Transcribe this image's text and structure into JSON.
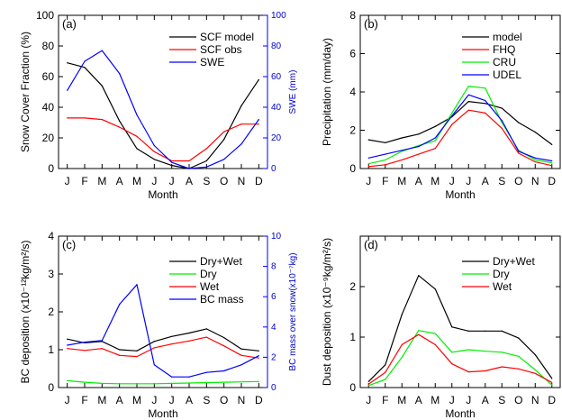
{
  "chart_data": [
    {
      "type": "line",
      "panel_label": "(a)",
      "xlabel": "Month",
      "ylabel": "Snow Cover Fraction (%)",
      "ylabel_right": "SWE (mm)",
      "categories": [
        "J",
        "F",
        "M",
        "A",
        "M",
        "J",
        "J",
        "A",
        "S",
        "O",
        "N",
        "D"
      ],
      "ylim": [
        0,
        100
      ],
      "y_ticks": [
        "0",
        "20",
        "40",
        "60",
        "80",
        "100"
      ],
      "ylim_right": [
        0,
        100
      ],
      "y_ticks_right": [
        "0",
        "20",
        "40",
        "60",
        "80",
        "100"
      ],
      "legend_position": "top-right",
      "series": [
        {
          "name": "SCF model",
          "color": "#000000",
          "axis": "left",
          "values": [
            69,
            66,
            54,
            31,
            13,
            6,
            2,
            0,
            5,
            19,
            41,
            58
          ]
        },
        {
          "name": "SCF obs",
          "color": "#ff0000",
          "axis": "left",
          "values": [
            33,
            33,
            32,
            27,
            21,
            11,
            5,
            5,
            13,
            24,
            29,
            29
          ]
        },
        {
          "name": "SWE",
          "color": "#0000ff",
          "axis": "right",
          "values": [
            51,
            70,
            77,
            62,
            35,
            15,
            4,
            0,
            1,
            6,
            16,
            32
          ]
        }
      ]
    },
    {
      "type": "line",
      "panel_label": "(b)",
      "xlabel": "Month",
      "ylabel": "Precipitation (mm/day)",
      "categories": [
        "J",
        "F",
        "M",
        "A",
        "M",
        "J",
        "J",
        "A",
        "S",
        "O",
        "N",
        "D"
      ],
      "ylim": [
        0,
        8
      ],
      "y_ticks": [
        "0",
        "2",
        "4",
        "6",
        "8"
      ],
      "legend_position": "top-right",
      "series": [
        {
          "name": "model",
          "color": "#000000",
          "values": [
            1.5,
            1.35,
            1.6,
            1.8,
            2.2,
            2.7,
            3.5,
            3.4,
            3.15,
            2.4,
            1.9,
            1.25
          ]
        },
        {
          "name": "FHQ",
          "color": "#ff0000",
          "values": [
            0.1,
            0.2,
            0.45,
            0.75,
            1.05,
            2.3,
            3.05,
            2.9,
            2.1,
            0.8,
            0.35,
            0.15
          ]
        },
        {
          "name": "CRU",
          "color": "#00ee00",
          "values": [
            0.25,
            0.45,
            0.9,
            1.2,
            1.45,
            2.9,
            4.3,
            4.2,
            2.4,
            0.95,
            0.45,
            0.3
          ]
        },
        {
          "name": "UDEL",
          "color": "#0000ff",
          "values": [
            0.55,
            0.75,
            0.95,
            1.15,
            1.6,
            2.75,
            3.85,
            3.55,
            2.5,
            0.9,
            0.55,
            0.4
          ]
        }
      ]
    },
    {
      "type": "line",
      "panel_label": "(c)",
      "xlabel": "Month",
      "ylabel": "BC deposition (x10⁻¹²kg/m²/s)",
      "ylabel_right": "BC mass over snow(x10⁻⁷kg)",
      "categories": [
        "J",
        "F",
        "M",
        "A",
        "M",
        "J",
        "J",
        "A",
        "S",
        "O",
        "N",
        "D"
      ],
      "ylim": [
        0,
        4
      ],
      "y_ticks": [
        "0",
        "1",
        "2",
        "3",
        "4"
      ],
      "ylim_right": [
        0,
        10
      ],
      "y_ticks_right": [
        "0",
        "2",
        "4",
        "6",
        "8",
        "10"
      ],
      "legend_position": "top-right",
      "series": [
        {
          "name": "Dry+Wet",
          "color": "#000000",
          "axis": "left",
          "values": [
            1.28,
            1.18,
            1.22,
            1.0,
            0.97,
            1.22,
            1.35,
            1.44,
            1.55,
            1.32,
            1.02,
            0.97
          ]
        },
        {
          "name": "Dry",
          "color": "#00ee00",
          "axis": "left",
          "values": [
            0.18,
            0.14,
            0.11,
            0.1,
            0.1,
            0.1,
            0.11,
            0.12,
            0.13,
            0.14,
            0.15,
            0.16
          ]
        },
        {
          "name": "Wet",
          "color": "#ff0000",
          "axis": "left",
          "values": [
            1.03,
            0.98,
            1.03,
            0.85,
            0.82,
            1.05,
            1.15,
            1.23,
            1.33,
            1.1,
            0.85,
            0.78
          ]
        },
        {
          "name": "BC mass",
          "color": "#0000ff",
          "axis": "right",
          "values": [
            2.8,
            3.0,
            3.1,
            5.5,
            6.8,
            1.5,
            0.7,
            0.7,
            1.0,
            1.1,
            1.5,
            2.1
          ]
        }
      ]
    },
    {
      "type": "line",
      "panel_label": "(d)",
      "xlabel": "Month",
      "ylabel": "Dust deposition (x10⁻⁹kg/m²/s)",
      "categories": [
        "J",
        "F",
        "M",
        "A",
        "M",
        "J",
        "J",
        "A",
        "S",
        "O",
        "N",
        "D"
      ],
      "ylim": [
        0,
        3
      ],
      "y_ticks": [
        "0",
        "1",
        "2"
      ],
      "legend_position": "top-right",
      "series": [
        {
          "name": "Dry+Wet",
          "color": "#000000",
          "values": [
            0.12,
            0.45,
            1.45,
            2.22,
            1.95,
            1.2,
            1.12,
            1.12,
            1.12,
            0.98,
            0.65,
            0.18
          ]
        },
        {
          "name": "Dry",
          "color": "#00ee00",
          "values": [
            0.04,
            0.16,
            0.6,
            1.13,
            1.07,
            0.7,
            0.75,
            0.72,
            0.7,
            0.62,
            0.35,
            0.05
          ]
        },
        {
          "name": "Wet",
          "color": "#ff0000",
          "values": [
            0.07,
            0.3,
            0.85,
            1.05,
            0.85,
            0.47,
            0.31,
            0.33,
            0.41,
            0.37,
            0.28,
            0.1
          ]
        }
      ]
    }
  ]
}
